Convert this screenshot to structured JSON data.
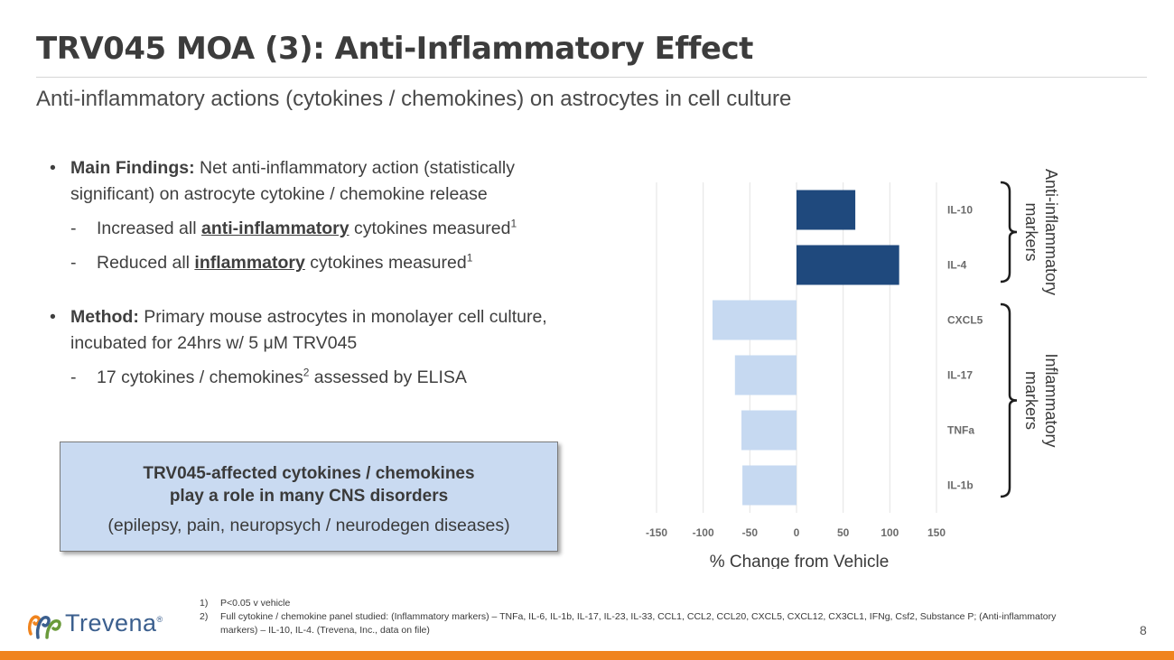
{
  "slide": {
    "title": "TRV045 MOA (3): Anti-Inflammatory Effect",
    "subtitle": "Anti-inflammatory actions (cytokines / chemokines) on astrocytes in cell culture",
    "page_number": "8"
  },
  "bullets": {
    "findings_bold": "Main Findings:",
    "findings_text": " Net anti-inflammatory action (statistically significant) on astrocyte cytokine / chemokine release",
    "sub1_pre": "Increased all ",
    "sub1_underline": "anti-inflammatory",
    "sub1_post": " cytokines measured",
    "sub1_sup": "1",
    "sub2_pre": "Reduced all ",
    "sub2_underline": "inflammatory",
    "sub2_post": " cytokines measured",
    "sub2_sup": "1",
    "method_bold": "Method:",
    "method_text": " Primary mouse astrocytes in monolayer cell culture, incubated for 24hrs w/ 5 μM TRV045",
    "sub3_pre": "17 cytokines / chemokines",
    "sub3_sup": "2",
    "sub3_post": " assessed by ELISA",
    "bullet_char": "•",
    "dash_char": "-"
  },
  "callout": {
    "line1": "TRV045-affected cytokines / chemokines",
    "line2": "play a role in many CNS disorders",
    "line3": "(epilepsy, pain, neuropsych / neurodegen diseases)"
  },
  "chart_data": {
    "type": "bar",
    "orientation": "horizontal",
    "categories": [
      "IL-10",
      "IL-4",
      "CXCL5",
      "IL-17",
      "TNFa",
      "IL-1b"
    ],
    "values": [
      63,
      110,
      -90,
      -66,
      -59,
      -58
    ],
    "xlabel": "% Change from Vehicle",
    "ylabel": "",
    "xlim": [
      -150,
      150
    ],
    "xticks": [
      -150,
      -100,
      -50,
      0,
      50,
      100,
      150
    ],
    "grid": "vertical",
    "colors": {
      "anti_inflammatory": "#1f497d",
      "inflammatory": "#c6d9f1"
    },
    "groups": [
      {
        "label_line1": "Anti-inflammatory",
        "label_line2": "markers",
        "categories": [
          "IL-10",
          "IL-4"
        ]
      },
      {
        "label_line1": "Inflammatory",
        "label_line2": "markers",
        "categories": [
          "CXCL5",
          "IL-17",
          "TNFa",
          "IL-1b"
        ]
      }
    ]
  },
  "footnotes": [
    {
      "num": "1)",
      "text": "P<0.05 v vehicle"
    },
    {
      "num": "2)",
      "text": "Full cytokine / chemokine panel studied:  (Inflammatory markers) – TNFa, IL-6, IL-1b, IL-17, IL-23, IL-33, CCL1, CCL2, CCL20, CXCL5, CXCL12, CX3CL1, IFNg, Csf2, Substance P;  (Anti-inflammatory markers) – IL-10, IL-4. (Trevena, Inc., data on file)"
    }
  ],
  "logo": {
    "text": "Trevena",
    "icon": "trevena-swirl-icon",
    "mark": "®"
  },
  "colors": {
    "accent_bar": "#f0841e",
    "callout_bg": "#c9daf1"
  }
}
